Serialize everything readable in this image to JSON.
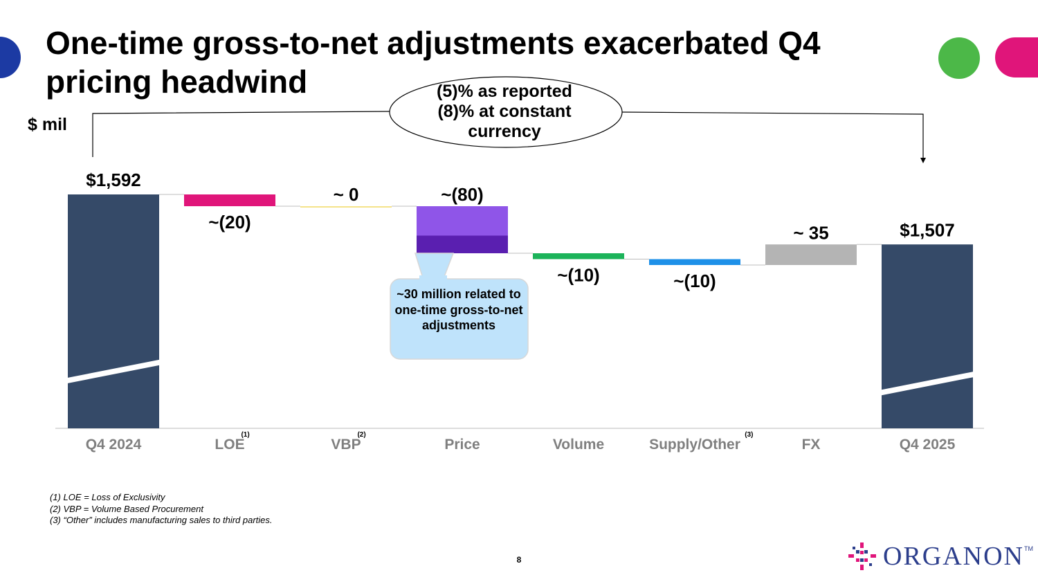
{
  "title": "One-time gross-to-net adjustments exacerbated Q4 pricing headwind",
  "unit_label": "$ mil",
  "summary": {
    "line1": "(5)%  as reported",
    "line2": "(8)%  at constant",
    "line3": "currency"
  },
  "callout": "~30 million related to one-time gross-to-net adjustments",
  "footnotes": [
    "(1) LOE = Loss of Exclusivity",
    "(2) VBP = Volume Based Procurement",
    "(3) “Other” includes manufacturing sales to third parties."
  ],
  "page_number": "8",
  "logo": {
    "name": "ORGANON",
    "tm": "TM"
  },
  "colors": {
    "total": "#354a68",
    "loe": "#e0157a",
    "vbp": "#f5e38a",
    "price_light": "#8f55e8",
    "price_dark": "#5a1fb0",
    "volume": "#1cb35a",
    "supply": "#1e90e8",
    "fx": "#b4b4b4",
    "callout_fill": "#bfe3fb",
    "deco_blue": "#1c3aa3",
    "deco_green": "#4cb848",
    "deco_pink": "#e0157a",
    "axis_text": "#7f7f7f"
  },
  "chart_data": {
    "type": "waterfall",
    "title": "One-time gross-to-net adjustments exacerbated Q4 pricing headwind",
    "ylabel": "$ mil",
    "categories": [
      "Q4 2024",
      "LOE",
      "VBP",
      "Price",
      "Volume",
      "Supply/Other",
      "FX",
      "Q4 2025"
    ],
    "category_footnotes": [
      "",
      "(1)",
      "(2)",
      "",
      "",
      "(3)",
      "",
      ""
    ],
    "values": [
      1592,
      -20,
      0,
      -80,
      -10,
      -10,
      35,
      1507
    ],
    "kinds": [
      "total",
      "delta",
      "delta",
      "delta",
      "delta",
      "delta",
      "delta",
      "total"
    ],
    "labels": [
      "$1,592",
      "~(20)",
      "~ 0",
      "~(80)",
      "~(10)",
      "~(10)",
      "~ 35",
      "$1,507"
    ],
    "price_one_time_component": 30,
    "axis_break": true
  }
}
